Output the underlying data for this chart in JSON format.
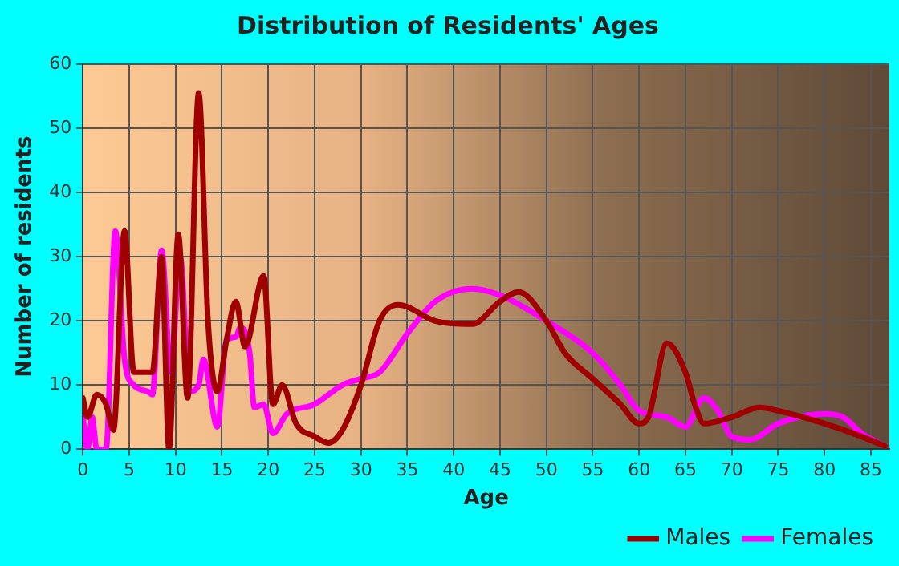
{
  "chart_data": {
    "type": "line",
    "title": "Distribution of Residents' Ages",
    "xlabel": "Age",
    "ylabel": "Number of residents",
    "xlim": [
      0,
      87
    ],
    "xticks": [
      0,
      5,
      10,
      15,
      20,
      25,
      30,
      35,
      40,
      45,
      50,
      55,
      60,
      65,
      70,
      75,
      80,
      85
    ],
    "ylim": [
      0,
      60
    ],
    "yticks": [
      0,
      10,
      20,
      30,
      40,
      50,
      60
    ],
    "grid": true,
    "legend": "bottom right",
    "marker": "none",
    "line_style": "solid",
    "series": [
      {
        "name": "Males",
        "color": "#a00000",
        "x": [
          0,
          0.5,
          1.5,
          2.5,
          3.3,
          4.5,
          5.5,
          6.5,
          7.5,
          8.5,
          9.3,
          10.3,
          11.3,
          12.5,
          13.5,
          14.5,
          15.5,
          16.5,
          17.5,
          19.5,
          20.5,
          21.5,
          23,
          25,
          26.5,
          28,
          30,
          32,
          34,
          38,
          42,
          45,
          47,
          50,
          52,
          55,
          58,
          60,
          61,
          63,
          65,
          66,
          67,
          70,
          73,
          75,
          80,
          84,
          86.5
        ],
        "values": [
          8,
          5,
          8.5,
          7,
          3,
          34,
          12,
          12,
          12,
          30,
          0,
          33.5,
          8,
          55.5,
          20,
          9,
          17,
          23,
          16,
          27,
          7,
          10,
          4,
          2,
          1,
          3,
          10,
          20,
          22.5,
          20,
          19.5,
          23,
          24.5,
          20,
          15,
          11,
          7,
          4,
          5,
          16.5,
          12,
          7,
          4,
          5,
          6.5,
          6,
          4,
          2,
          0.5
        ]
      },
      {
        "name": "Females",
        "color": "#ff00ff",
        "x": [
          0,
          0.5,
          1,
          1.5,
          2.5,
          3.5,
          4.5,
          5.5,
          7,
          7.5,
          8.5,
          9.5,
          10.5,
          11.5,
          12.5,
          13,
          14.5,
          15.5,
          16.5,
          17,
          18,
          18.5,
          19.5,
          20.5,
          22,
          25,
          28,
          30,
          32,
          35,
          38,
          42,
          45,
          50,
          55,
          58,
          60,
          63,
          65,
          67,
          68.5,
          70,
          72,
          75,
          80,
          82,
          84,
          86.5
        ],
        "values": [
          5,
          0,
          5,
          0,
          0,
          34,
          14,
          10,
          9,
          8.5,
          31,
          12,
          30,
          9,
          10,
          14,
          3.5,
          17,
          17.5,
          19,
          15,
          6.5,
          7,
          2.5,
          5.5,
          7,
          10,
          11,
          12,
          18,
          23,
          25,
          24,
          20,
          15,
          10,
          6,
          5,
          3.5,
          8,
          6,
          2,
          1.5,
          4,
          5.5,
          5,
          2.5,
          0.5
        ]
      }
    ]
  }
}
